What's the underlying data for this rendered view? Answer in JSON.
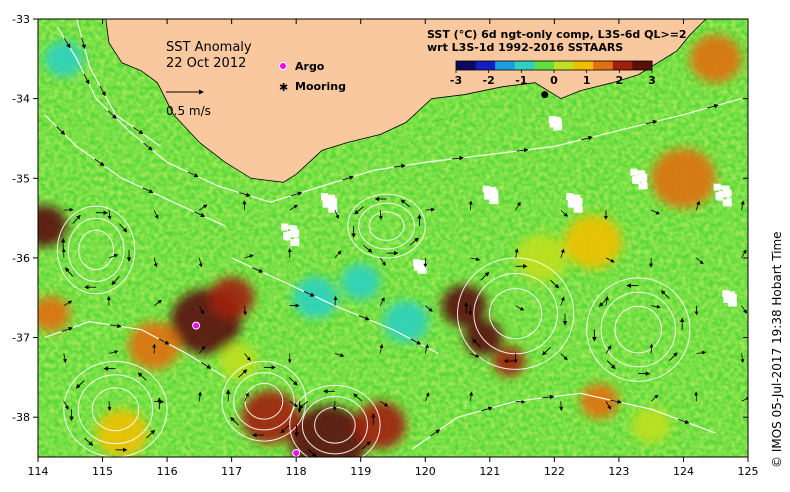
{
  "title": "SST Anomaly",
  "date": "22 Oct 2012",
  "scale_arrow_label": "0.5 m/s",
  "legend_markers": [
    {
      "label": "Argo",
      "color": "#ff00ff",
      "icon": "argo-circle-icon"
    },
    {
      "label": "Mooring",
      "color": "#000000",
      "icon": "mooring-star-icon"
    }
  ],
  "product_line1": "SST (°C) 6d ngt-only comp, L3S-6d QL>=2",
  "product_line2": "wrt L3S-1d 1992-2016 SSTAARS",
  "colorbar": {
    "ticks": [
      "-3",
      "-2",
      "-1",
      "0",
      "1",
      "2",
      "3"
    ],
    "colors": [
      "#0a0a60",
      "#1020c0",
      "#1aa0e0",
      "#2fd0c0",
      "#60e040",
      "#c0e020",
      "#f0c000",
      "#e07010",
      "#a02010",
      "#5a1008"
    ]
  },
  "credit": "© IMOS 05-Jul-2017 19:38 Hobart Time",
  "map": {
    "lon_min": 114,
    "lon_max": 125,
    "lat_min": -38.5,
    "lat_max": -33,
    "x_ticks": [
      "114",
      "115",
      "116",
      "117",
      "118",
      "119",
      "120",
      "121",
      "122",
      "123",
      "124",
      "125"
    ],
    "y_ticks": [
      "-33",
      "-34",
      "-35",
      "-36",
      "-37",
      "-38"
    ],
    "land_color": "#f9c89e",
    "coast": [
      [
        115.05,
        -33.0
      ],
      [
        115.1,
        -33.3
      ],
      [
        115.3,
        -33.55
      ],
      [
        115.6,
        -33.65
      ],
      [
        115.85,
        -33.8
      ],
      [
        116.1,
        -34.2
      ],
      [
        116.5,
        -34.55
      ],
      [
        116.9,
        -34.8
      ],
      [
        117.3,
        -35.0
      ],
      [
        117.8,
        -35.05
      ],
      [
        118.0,
        -34.95
      ],
      [
        118.4,
        -34.65
      ],
      [
        118.8,
        -34.55
      ],
      [
        119.3,
        -34.45
      ],
      [
        119.7,
        -34.3
      ],
      [
        120.1,
        -34.0
      ],
      [
        120.6,
        -33.95
      ],
      [
        121.2,
        -33.85
      ],
      [
        121.7,
        -33.8
      ],
      [
        122.1,
        -34.0
      ],
      [
        122.4,
        -33.9
      ],
      [
        122.9,
        -33.8
      ],
      [
        123.3,
        -33.7
      ],
      [
        123.6,
        -33.55
      ],
      [
        123.9,
        -33.4
      ],
      [
        124.1,
        -33.2
      ],
      [
        124.35,
        -33.0
      ]
    ],
    "argo": [
      [
        116.45,
        -36.85
      ],
      [
        118.0,
        -38.45
      ]
    ],
    "mooring": [
      [
        121.85,
        -33.95
      ]
    ],
    "anomaly_patches": [
      {
        "lon": 114.1,
        "lat": -35.6,
        "r": 0.35,
        "v": 2.6
      },
      {
        "lon": 114.2,
        "lat": -36.7,
        "r": 0.3,
        "v": 1.5
      },
      {
        "lon": 116.6,
        "lat": -36.8,
        "r": 0.55,
        "v": 2.4
      },
      {
        "lon": 117.0,
        "lat": -36.5,
        "r": 0.35,
        "v": 2.0
      },
      {
        "lon": 118.5,
        "lat": -38.3,
        "r": 0.6,
        "v": 2.9
      },
      {
        "lon": 117.6,
        "lat": -38.0,
        "r": 0.45,
        "v": 2.2
      },
      {
        "lon": 119.3,
        "lat": -38.1,
        "r": 0.4,
        "v": 2.0
      },
      {
        "lon": 120.6,
        "lat": -36.6,
        "r": 0.35,
        "v": 2.4
      },
      {
        "lon": 120.9,
        "lat": -37.0,
        "r": 0.3,
        "v": 2.5
      },
      {
        "lon": 121.3,
        "lat": -37.3,
        "r": 0.25,
        "v": 2.2
      },
      {
        "lon": 122.7,
        "lat": -37.8,
        "r": 0.3,
        "v": 1.8
      },
      {
        "lon": 124.0,
        "lat": -35.0,
        "r": 0.5,
        "v": 1.5
      },
      {
        "lon": 124.5,
        "lat": -33.5,
        "r": 0.4,
        "v": 1.3
      },
      {
        "lon": 115.8,
        "lat": -37.1,
        "r": 0.4,
        "v": 1.2
      },
      {
        "lon": 118.3,
        "lat": -36.5,
        "r": 0.35,
        "v": -0.8
      },
      {
        "lon": 119.7,
        "lat": -36.8,
        "r": 0.35,
        "v": -1.2
      },
      {
        "lon": 119.0,
        "lat": -36.3,
        "r": 0.3,
        "v": -0.6
      },
      {
        "lon": 114.4,
        "lat": -33.5,
        "r": 0.3,
        "v": -1.0
      },
      {
        "lon": 121.8,
        "lat": -36.0,
        "r": 0.4,
        "v": 0.0
      },
      {
        "lon": 123.5,
        "lat": -38.1,
        "r": 0.3,
        "v": 0.3
      },
      {
        "lon": 122.6,
        "lat": -35.8,
        "r": 0.45,
        "v": 0.8
      },
      {
        "lon": 117.1,
        "lat": -37.3,
        "r": 0.3,
        "v": 0.2
      },
      {
        "lon": 115.3,
        "lat": -38.2,
        "r": 0.4,
        "v": 1.0
      }
    ],
    "nodata_patches": [
      {
        "lon": 117.9,
        "lat": -35.7,
        "r": 0.25
      },
      {
        "lon": 118.5,
        "lat": -35.3,
        "r": 0.2
      },
      {
        "lon": 121.0,
        "lat": -35.2,
        "r": 0.18
      },
      {
        "lon": 122.3,
        "lat": -35.3,
        "r": 0.2
      },
      {
        "lon": 123.3,
        "lat": -35.0,
        "r": 0.22
      },
      {
        "lon": 124.6,
        "lat": -35.2,
        "r": 0.25
      },
      {
        "lon": 124.7,
        "lat": -36.5,
        "r": 0.15
      },
      {
        "lon": 119.9,
        "lat": -36.1,
        "r": 0.12
      },
      {
        "lon": 122.0,
        "lat": -34.3,
        "r": 0.12
      }
    ],
    "eddies": [
      {
        "lon": 114.9,
        "lat": -35.9,
        "rx": 0.6,
        "ry": 0.55,
        "dir": 1
      },
      {
        "lon": 119.4,
        "lat": -35.6,
        "rx": 0.6,
        "ry": 0.4,
        "dir": -1
      },
      {
        "lon": 115.2,
        "lat": -37.9,
        "rx": 0.8,
        "ry": 0.6,
        "dir": -1
      },
      {
        "lon": 117.5,
        "lat": -37.8,
        "rx": 0.65,
        "ry": 0.5,
        "dir": 1
      },
      {
        "lon": 118.6,
        "lat": -38.1,
        "rx": 0.7,
        "ry": 0.5,
        "dir": -1
      },
      {
        "lon": 121.4,
        "lat": -36.7,
        "rx": 0.9,
        "ry": 0.7,
        "dir": 1
      },
      {
        "lon": 123.3,
        "lat": -36.9,
        "rx": 0.8,
        "ry": 0.65,
        "dir": -1
      }
    ],
    "streamlines": [
      [
        [
          114.3,
          -33.1
        ],
        [
          114.6,
          -33.5
        ],
        [
          114.9,
          -34.0
        ],
        [
          115.4,
          -34.4
        ],
        [
          116.0,
          -34.8
        ],
        [
          116.8,
          -35.1
        ],
        [
          117.6,
          -35.3
        ],
        [
          118.4,
          -35.1
        ],
        [
          119.2,
          -34.9
        ],
        [
          120.0,
          -34.8
        ],
        [
          121.0,
          -34.7
        ],
        [
          122.0,
          -34.6
        ],
        [
          123.0,
          -34.4
        ],
        [
          124.0,
          -34.2
        ],
        [
          124.9,
          -34.0
        ]
      ],
      [
        [
          114.6,
          -33.0
        ],
        [
          114.8,
          -33.6
        ],
        [
          115.2,
          -34.2
        ],
        [
          115.9,
          -34.6
        ]
      ],
      [
        [
          114.1,
          -34.2
        ],
        [
          114.6,
          -34.6
        ],
        [
          115.3,
          -35.0
        ],
        [
          116.1,
          -35.3
        ],
        [
          116.9,
          -35.6
        ]
      ],
      [
        [
          117.0,
          -36.0
        ],
        [
          117.8,
          -36.3
        ],
        [
          118.6,
          -36.6
        ],
        [
          119.5,
          -36.9
        ],
        [
          120.2,
          -37.2
        ]
      ],
      [
        [
          119.8,
          -38.4
        ],
        [
          120.5,
          -38.0
        ],
        [
          121.4,
          -37.8
        ],
        [
          122.4,
          -37.7
        ],
        [
          123.5,
          -37.9
        ],
        [
          124.5,
          -38.2
        ]
      ],
      [
        [
          114.1,
          -37.0
        ],
        [
          114.8,
          -36.8
        ],
        [
          115.6,
          -36.9
        ],
        [
          116.3,
          -37.2
        ],
        [
          116.9,
          -37.5
        ]
      ]
    ]
  }
}
